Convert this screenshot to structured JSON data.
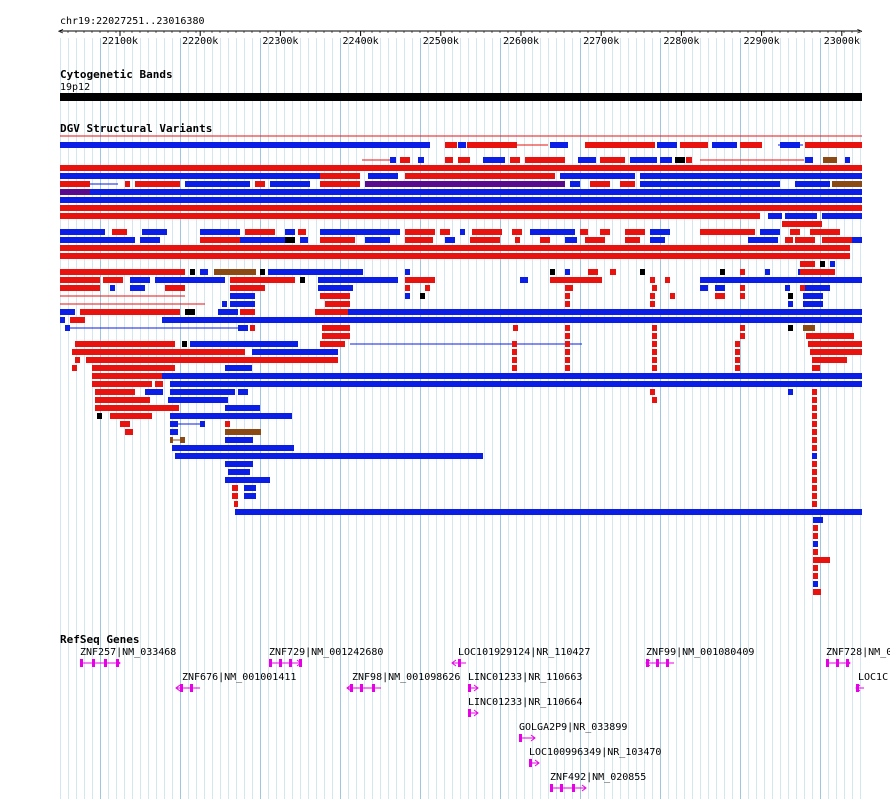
{
  "ruler": {
    "location": "chr19:22027251..23016380",
    "ticks": [
      "22100k",
      "22200k",
      "22300k",
      "22400k",
      "22500k",
      "22600k",
      "22700k",
      "22800k",
      "22900k",
      "23000k"
    ]
  },
  "cytoband": {
    "title": "Cytogenetic Bands",
    "band_label": "19p12"
  },
  "dgv": {
    "title": "DGV Structural Variants",
    "colors": {
      "loss": "#e8120f",
      "gain": "#0a1ee6",
      "both": "#8b4a14",
      "inversion": "#5a0a8c",
      "other": "#000000"
    }
  },
  "refseq": {
    "title": "RefSeq Genes",
    "color": "#e600e6",
    "genes": [
      {
        "label": "ZNF257|NM_033468",
        "strand": "+",
        "icon": "gene-plus-strand"
      },
      {
        "label": "ZNF729|NM_001242680",
        "strand": "+",
        "icon": "gene-plus-strand"
      },
      {
        "label": "LOC101929124|NR_110427",
        "strand": "-",
        "icon": "gene-minus-strand"
      },
      {
        "label": "ZNF99|NM_001080409",
        "strand": "-",
        "icon": "gene-minus-strand"
      },
      {
        "label": "ZNF728|NM_0",
        "strand": "+",
        "icon": "gene-plus-strand"
      },
      {
        "label": "ZNF676|NM_001001411",
        "strand": "-",
        "icon": "gene-minus-strand"
      },
      {
        "label": "ZNF98|NM_001098626",
        "strand": "-",
        "icon": "gene-minus-strand"
      },
      {
        "label": "LINC01233|NR_110663",
        "strand": "+",
        "icon": "gene-plus-strand"
      },
      {
        "label": "LOC1C",
        "strand": "-",
        "icon": "gene-minus-strand"
      },
      {
        "label": "LINC01233|NR_110664",
        "strand": "+",
        "icon": "gene-plus-strand"
      },
      {
        "label": "GOLGA2P9|NR_033899",
        "strand": "+",
        "icon": "gene-plus-strand"
      },
      {
        "label": "LOC100996349|NR_103470",
        "strand": "+",
        "icon": "gene-plus-strand"
      },
      {
        "label": "ZNF492|NM_020855",
        "strand": "+",
        "icon": "gene-plus-strand"
      }
    ]
  }
}
